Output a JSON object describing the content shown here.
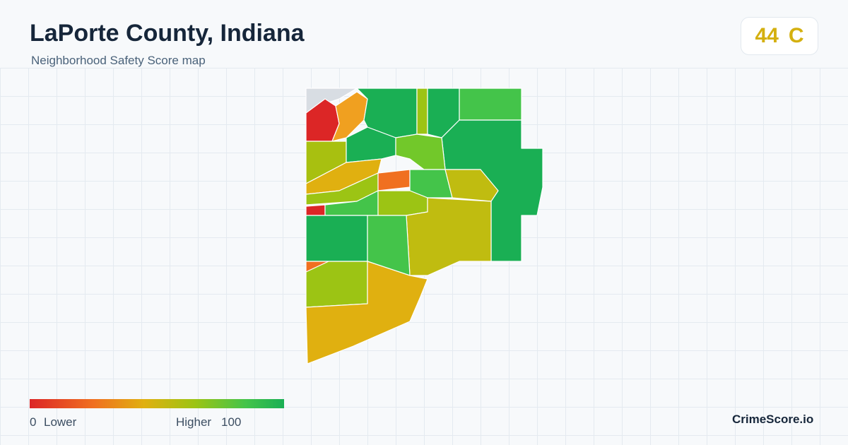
{
  "header": {
    "title": "LaPorte County, Indiana",
    "subtitle": "Neighborhood Safety Score map"
  },
  "score": {
    "value": "44",
    "grade": "C"
  },
  "legend": {
    "min": "0",
    "min_label": "Lower",
    "max_label": "Higher",
    "max": "100"
  },
  "brand": "CrimeScore.io"
}
